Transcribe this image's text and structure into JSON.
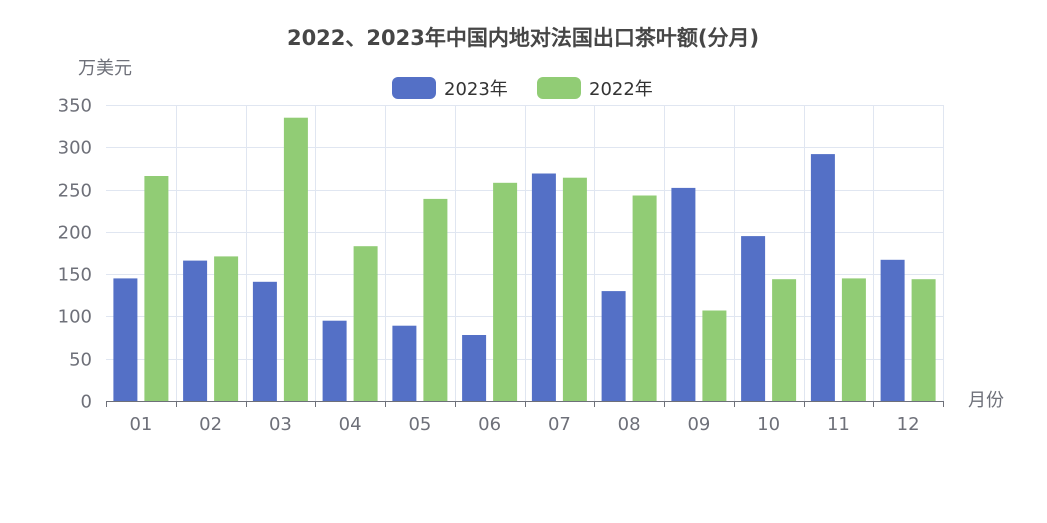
{
  "chart_data": {
    "type": "bar",
    "title": "2022、2023年中国内地对法国出口茶叶额(分月)",
    "ylabel": "万美元",
    "xlabel": "月份",
    "ylim": [
      0,
      350
    ],
    "yticks": [
      0,
      50,
      100,
      150,
      200,
      250,
      300,
      350
    ],
    "categories": [
      "01",
      "02",
      "03",
      "04",
      "05",
      "06",
      "07",
      "08",
      "09",
      "10",
      "11",
      "12"
    ],
    "series": [
      {
        "name": "2023年",
        "color": "#5470c6",
        "values": [
          145,
          166,
          141,
          95,
          89,
          78,
          269,
          130,
          252,
          195,
          292,
          167
        ]
      },
      {
        "name": "2022年",
        "color": "#91cc75",
        "values": [
          266,
          171,
          335,
          183,
          239,
          258,
          264,
          243,
          107,
          144,
          145,
          144
        ]
      }
    ],
    "legend_position": "top-center",
    "grid": true
  }
}
